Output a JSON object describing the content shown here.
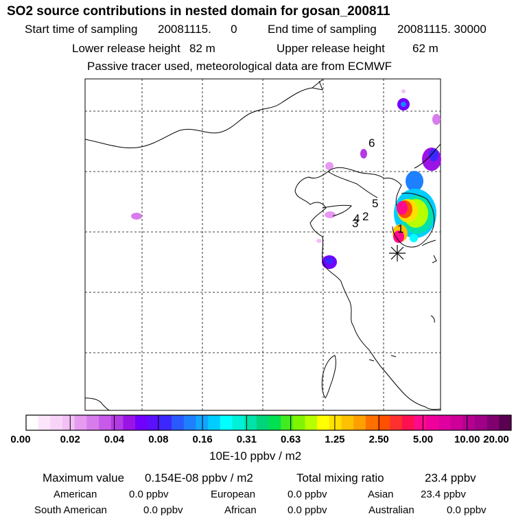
{
  "title": "SO2 source contributions in nested domain for gosan_200811",
  "header": {
    "start_label": "Start time of sampling",
    "start_value": "20081115.      0",
    "end_label": "End time of sampling",
    "end_value": "20081115. 30000",
    "lower_label": "Lower release height",
    "lower_value": "82 m",
    "upper_label": "Upper release height",
    "upper_value": "62 m",
    "note": "Passive tracer used, meteorological data are from ECMWF"
  },
  "map": {
    "source_labels": [
      "1",
      "2",
      "3",
      "4",
      "5",
      "6"
    ],
    "receptor_marker": "asterisk-icon"
  },
  "colorbar": {
    "tick_labels": [
      "0.00",
      "0.02",
      "0.04",
      "0.08",
      "0.16",
      "0.31",
      "0.63",
      "1.25",
      "2.50",
      "5.00",
      "10.00",
      "20.00"
    ],
    "colors": [
      "#ffffff",
      "#fbe6fb",
      "#f7d4f7",
      "#f2c0f4",
      "#e69af0",
      "#d77cec",
      "#c75ae8",
      "#b43be4",
      "#9a14e6",
      "#7200ff",
      "#5a10ff",
      "#3c28ff",
      "#2a5aff",
      "#1e80ff",
      "#10a6ff",
      "#00ccff",
      "#00ffff",
      "#00f0d8",
      "#00e2a8",
      "#00d47a",
      "#00e050",
      "#40ec20",
      "#80f400",
      "#b8ff00",
      "#ffff00",
      "#ffe000",
      "#ffc000",
      "#ffa000",
      "#ff7000",
      "#ff5000",
      "#ff3030",
      "#ff1050",
      "#ff0a8c",
      "#f0009a",
      "#e000a0",
      "#cc0099",
      "#b40090",
      "#a00088",
      "#800070",
      "#5a0050"
    ],
    "unit": "10E-10 ppbv / m2"
  },
  "stats": {
    "max_label": "Maximum value",
    "max_value": "0.154E-08 ppbv / m2",
    "total_label": "Total mixing ratio",
    "total_value": "23.4 ppbv",
    "regions": [
      {
        "name": "American",
        "value": "0.0 ppbv"
      },
      {
        "name": "European",
        "value": "0.0 ppbv"
      },
      {
        "name": "Asian",
        "value": "23.4 ppbv"
      },
      {
        "name": "South American",
        "value": "0.0 ppbv"
      },
      {
        "name": "African",
        "value": "0.0 ppbv"
      },
      {
        "name": "Australian",
        "value": "0.0 ppbv"
      }
    ]
  }
}
